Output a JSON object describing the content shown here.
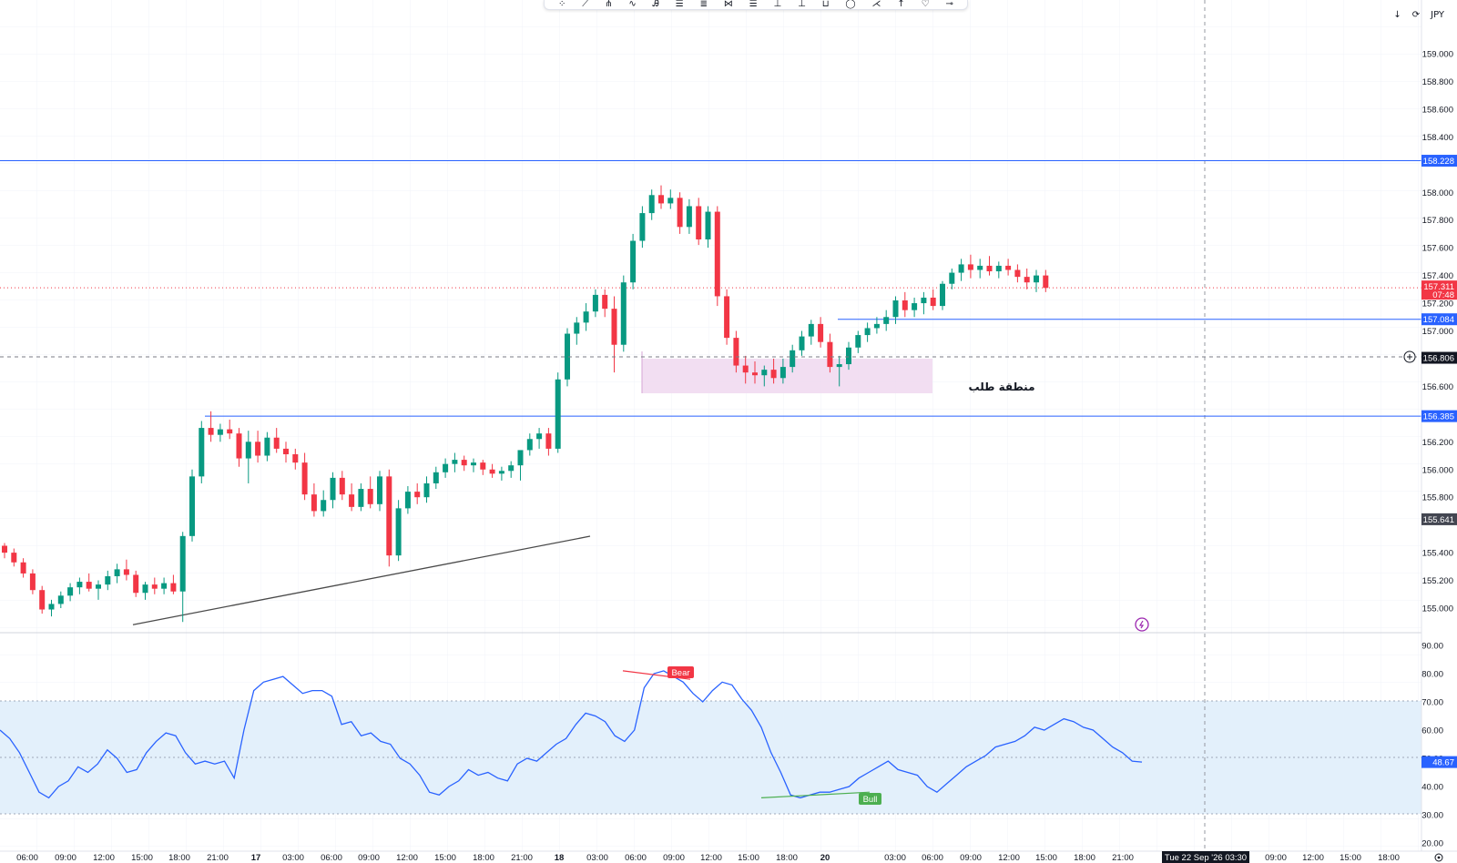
{
  "toolbar": {
    "tools": [
      "cursor-tool",
      "trend-line-tool",
      "pitchfork-tool",
      "brush-tool",
      "text-tool",
      "horizontal-line-tool",
      "parallel-channel-tool",
      "fib-tool",
      "position-tool",
      "rectangle-tool",
      "path-tool",
      "ellipse-tool",
      "measure-tool",
      "arrow-tool",
      "marker-tool",
      "price-label-tool"
    ]
  },
  "top_controls": {
    "download": "↓",
    "refresh": "⟳",
    "currency": "JPY"
  },
  "colors": {
    "up": "#089981",
    "down": "#f23645",
    "level": "#2962ff",
    "rsi_line": "#2962ff",
    "rsi_band": "#e3f0fb",
    "demand_zone": "#f0d8f0",
    "trendline": "#4a4a4a",
    "bear_tag": "#f23645",
    "bull_tag": "#4caf50"
  },
  "chart_data": {
    "type": "candlestick",
    "symbol_currency": "JPY",
    "price_axis": {
      "range": [
        154.7,
        159.4
      ],
      "ticks": [
        "159.000",
        "158.800",
        "158.600",
        "158.400",
        "158.000",
        "157.800",
        "157.600",
        "157.400",
        "157.200",
        "157.000",
        "156.600",
        "156.400",
        "156.200",
        "156.000",
        "155.800",
        "155.400",
        "155.200",
        "155.000"
      ]
    },
    "time_axis_labels": [
      "06:00",
      "09:00",
      "12:00",
      "15:00",
      "18:00",
      "21:00",
      "17",
      "03:00",
      "06:00",
      "09:00",
      "12:00",
      "15:00",
      "18:00",
      "21:00",
      "18",
      "03:00",
      "06:00",
      "09:00",
      "12:00",
      "15:00",
      "18:00",
      "20",
      "03:00",
      "06:00",
      "09:00",
      "12:00",
      "15:00",
      "18:00",
      "21:00",
      "09:00",
      "12:00",
      "15:00",
      "18:00"
    ],
    "crosshair_time_label": "Tue 22 Sep '26   03:30",
    "horizontal_levels": [
      {
        "label": "158.228",
        "value": 158.228
      },
      {
        "label": "157.084",
        "value": 157.084
      },
      {
        "label": "156.385",
        "value": 156.385
      }
    ],
    "current_price": {
      "label": "157.311",
      "countdown": "07:48",
      "value": 157.311
    },
    "crosshair_price": {
      "label": "156.806",
      "value": 156.806
    },
    "gray_price_tag": {
      "label": "155.641",
      "value": 155.641
    },
    "demand_zone": {
      "label": "منطقة طلب",
      "top": 156.8,
      "bottom": 156.55
    },
    "trendline": {
      "from": 154.9,
      "to": 155.65
    },
    "candles_ohlc": [
      [
        155.45,
        155.47,
        155.36,
        155.4
      ],
      [
        155.4,
        155.43,
        155.3,
        155.33
      ],
      [
        155.33,
        155.36,
        155.22,
        155.25
      ],
      [
        155.25,
        155.28,
        155.1,
        155.13
      ],
      [
        155.13,
        155.16,
        154.96,
        154.99
      ],
      [
        154.99,
        155.06,
        154.94,
        155.03
      ],
      [
        155.03,
        155.12,
        155.0,
        155.09
      ],
      [
        155.09,
        155.18,
        155.05,
        155.15
      ],
      [
        155.15,
        155.22,
        155.1,
        155.19
      ],
      [
        155.19,
        155.25,
        155.12,
        155.14
      ],
      [
        155.14,
        155.2,
        155.06,
        155.17
      ],
      [
        155.17,
        155.27,
        155.13,
        155.23
      ],
      [
        155.23,
        155.32,
        155.18,
        155.28
      ],
      [
        155.28,
        155.35,
        155.2,
        155.24
      ],
      [
        155.24,
        155.27,
        155.08,
        155.11
      ],
      [
        155.11,
        155.19,
        155.06,
        155.17
      ],
      [
        155.17,
        155.22,
        155.1,
        155.14
      ],
      [
        155.14,
        155.22,
        155.1,
        155.18
      ],
      [
        155.18,
        155.24,
        155.1,
        155.12
      ],
      [
        155.12,
        155.55,
        154.9,
        155.52
      ],
      [
        155.52,
        156.0,
        155.48,
        155.95
      ],
      [
        155.95,
        156.35,
        155.9,
        156.3
      ],
      [
        156.3,
        156.42,
        156.2,
        156.25
      ],
      [
        156.25,
        156.33,
        156.2,
        156.29
      ],
      [
        156.29,
        156.36,
        156.22,
        156.26
      ],
      [
        156.26,
        156.3,
        156.02,
        156.08
      ],
      [
        156.08,
        156.28,
        155.9,
        156.2
      ],
      [
        156.2,
        156.28,
        156.05,
        156.1
      ],
      [
        156.1,
        156.27,
        156.06,
        156.23
      ],
      [
        156.23,
        156.3,
        156.12,
        156.15
      ],
      [
        156.15,
        156.2,
        156.05,
        156.11
      ],
      [
        156.11,
        156.15,
        156.0,
        156.05
      ],
      [
        156.05,
        156.12,
        155.78,
        155.82
      ],
      [
        155.82,
        155.9,
        155.66,
        155.7
      ],
      [
        155.7,
        155.85,
        155.66,
        155.78
      ],
      [
        155.78,
        155.98,
        155.72,
        155.94
      ],
      [
        155.94,
        155.99,
        155.78,
        155.82
      ],
      [
        155.82,
        155.9,
        155.7,
        155.73
      ],
      [
        155.73,
        155.9,
        155.7,
        155.86
      ],
      [
        155.86,
        155.95,
        155.72,
        155.75
      ],
      [
        155.75,
        155.99,
        155.7,
        155.95
      ],
      [
        155.95,
        156.0,
        155.3,
        155.38
      ],
      [
        155.38,
        155.78,
        155.34,
        155.72
      ],
      [
        155.72,
        155.88,
        155.68,
        155.84
      ],
      [
        155.84,
        155.9,
        155.75,
        155.8
      ],
      [
        155.8,
        155.95,
        155.76,
        155.9
      ],
      [
        155.9,
        156.02,
        155.86,
        155.98
      ],
      [
        155.98,
        156.08,
        155.94,
        156.04
      ],
      [
        156.04,
        156.12,
        155.98,
        156.07
      ],
      [
        156.07,
        156.1,
        155.99,
        156.03
      ],
      [
        156.03,
        156.08,
        155.98,
        156.05
      ],
      [
        156.05,
        156.07,
        155.96,
        156.0
      ],
      [
        156.0,
        156.04,
        155.94,
        155.97
      ],
      [
        155.97,
        156.02,
        155.92,
        155.99
      ],
      [
        155.99,
        156.06,
        155.94,
        156.03
      ],
      [
        156.03,
        156.1,
        155.92,
        156.14
      ],
      [
        156.14,
        156.26,
        156.1,
        156.22
      ],
      [
        156.22,
        156.3,
        156.15,
        156.26
      ],
      [
        156.26,
        156.3,
        156.1,
        156.15
      ],
      [
        156.15,
        156.7,
        156.12,
        156.65
      ],
      [
        156.65,
        157.02,
        156.6,
        156.98
      ],
      [
        156.98,
        157.1,
        156.9,
        157.06
      ],
      [
        157.06,
        157.2,
        157.0,
        157.14
      ],
      [
        157.14,
        157.3,
        157.1,
        157.26
      ],
      [
        157.26,
        157.3,
        157.1,
        157.16
      ],
      [
        157.16,
        157.25,
        156.7,
        156.9
      ],
      [
        156.9,
        157.4,
        156.85,
        157.35
      ],
      [
        157.35,
        157.7,
        157.3,
        157.65
      ],
      [
        157.65,
        157.9,
        157.6,
        157.85
      ],
      [
        157.85,
        158.02,
        157.8,
        157.98
      ],
      [
        157.98,
        158.05,
        157.88,
        157.92
      ],
      [
        157.92,
        158.02,
        157.88,
        157.96
      ],
      [
        157.96,
        158.0,
        157.7,
        157.75
      ],
      [
        157.75,
        157.95,
        157.7,
        157.9
      ],
      [
        157.9,
        157.96,
        157.62,
        157.66
      ],
      [
        157.66,
        157.9,
        157.6,
        157.86
      ],
      [
        157.86,
        157.9,
        157.18,
        157.25
      ],
      [
        157.25,
        157.3,
        156.9,
        156.95
      ],
      [
        156.95,
        157.0,
        156.7,
        156.75
      ],
      [
        156.75,
        156.82,
        156.62,
        156.7
      ],
      [
        156.7,
        156.78,
        156.62,
        156.68
      ],
      [
        156.68,
        156.75,
        156.6,
        156.72
      ],
      [
        156.72,
        156.8,
        156.62,
        156.66
      ],
      [
        156.66,
        156.8,
        156.62,
        156.74
      ],
      [
        156.74,
        156.9,
        156.7,
        156.86
      ],
      [
        156.86,
        157.0,
        156.82,
        156.96
      ],
      [
        156.96,
        157.08,
        156.9,
        157.05
      ],
      [
        157.05,
        157.1,
        156.88,
        156.92
      ],
      [
        156.92,
        156.98,
        156.7,
        156.74
      ],
      [
        156.74,
        156.82,
        156.6,
        156.76
      ],
      [
        156.76,
        156.92,
        156.72,
        156.88
      ],
      [
        156.88,
        157.0,
        156.84,
        156.97
      ],
      [
        156.97,
        157.06,
        156.92,
        157.02
      ],
      [
        157.02,
        157.1,
        156.98,
        157.05
      ],
      [
        157.05,
        157.15,
        157.0,
        157.1
      ],
      [
        157.1,
        157.25,
        157.05,
        157.22
      ],
      [
        157.22,
        157.28,
        157.1,
        157.15
      ],
      [
        157.15,
        157.24,
        157.1,
        157.2
      ],
      [
        157.2,
        157.28,
        157.12,
        157.24
      ],
      [
        157.24,
        157.3,
        157.15,
        157.18
      ],
      [
        157.18,
        157.36,
        157.15,
        157.34
      ],
      [
        157.34,
        157.45,
        157.3,
        157.42
      ],
      [
        157.42,
        157.52,
        157.36,
        157.48
      ],
      [
        157.48,
        157.55,
        157.38,
        157.44
      ],
      [
        157.44,
        157.52,
        157.38,
        157.47
      ],
      [
        157.47,
        157.54,
        157.4,
        157.43
      ],
      [
        157.43,
        157.5,
        157.38,
        157.47
      ],
      [
        157.47,
        157.52,
        157.4,
        157.44
      ],
      [
        157.44,
        157.48,
        157.35,
        157.39
      ],
      [
        157.39,
        157.45,
        157.3,
        157.35
      ],
      [
        157.35,
        157.44,
        157.28,
        157.4
      ],
      [
        157.4,
        157.44,
        157.28,
        157.31
      ]
    ],
    "rsi": {
      "axis_ticks": [
        "90.00",
        "80.00",
        "70.00",
        "60.00",
        "50.00",
        "40.00",
        "30.00",
        "20.00"
      ],
      "range": [
        20,
        90
      ],
      "upper_band": 70,
      "lower_band": 30,
      "mid": 50,
      "current_label": "48.67",
      "values": [
        60,
        57,
        52,
        45,
        38,
        36,
        40,
        42,
        47,
        45,
        48,
        53,
        50,
        45,
        46,
        52,
        56,
        59,
        58,
        52,
        48,
        49,
        48,
        49,
        43,
        60,
        74,
        77,
        78,
        79,
        76,
        73,
        74,
        74,
        72,
        62,
        63,
        58,
        59,
        56,
        55,
        50,
        48,
        44,
        38,
        37,
        40,
        42,
        46,
        44,
        45,
        43,
        42,
        48,
        50,
        49,
        52,
        55,
        57,
        62,
        66,
        65,
        63,
        58,
        56,
        60,
        75,
        80,
        81,
        79,
        77,
        73,
        70,
        74,
        77,
        76,
        71,
        67,
        61,
        52,
        45,
        37,
        36,
        37,
        38,
        38,
        39,
        40,
        43,
        45,
        47,
        49,
        46,
        45,
        44,
        40,
        38,
        41,
        44,
        47,
        49,
        51,
        54,
        55,
        56,
        58,
        61,
        60,
        62,
        64,
        63,
        61,
        60,
        57,
        54,
        52,
        49,
        48.67
      ],
      "bear_divergence": {
        "label": "Bear",
        "from": 81,
        "to": 78
      },
      "bull_divergence": {
        "label": "Bull",
        "from": 36,
        "to": 38
      }
    }
  }
}
